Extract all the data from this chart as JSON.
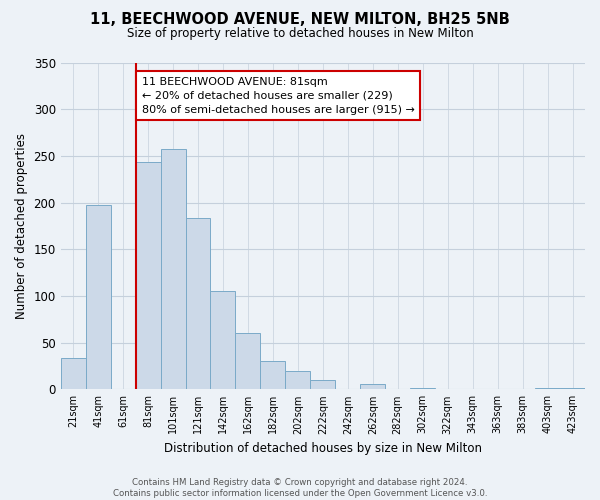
{
  "title": "11, BEECHWOOD AVENUE, NEW MILTON, BH25 5NB",
  "subtitle": "Size of property relative to detached houses in New Milton",
  "xlabel": "Distribution of detached houses by size in New Milton",
  "ylabel": "Number of detached properties",
  "bar_labels": [
    "21sqm",
    "41sqm",
    "61sqm",
    "81sqm",
    "101sqm",
    "121sqm",
    "142sqm",
    "162sqm",
    "182sqm",
    "202sqm",
    "222sqm",
    "242sqm",
    "262sqm",
    "282sqm",
    "302sqm",
    "322sqm",
    "343sqm",
    "363sqm",
    "383sqm",
    "403sqm",
    "423sqm"
  ],
  "bar_values": [
    33,
    197,
    0,
    243,
    257,
    183,
    105,
    60,
    30,
    20,
    10,
    0,
    6,
    0,
    1,
    0,
    0,
    0,
    0,
    1,
    1
  ],
  "bar_color": "#ccd9e8",
  "bar_edge_color": "#7aaac8",
  "vline_x_idx": 3,
  "vline_color": "#cc0000",
  "annotation_line1": "11 BEECHWOOD AVENUE: 81sqm",
  "annotation_line2": "← 20% of detached houses are smaller (229)",
  "annotation_line3": "80% of semi-detached houses are larger (915) →",
  "annotation_box_edgecolor": "#cc0000",
  "annotation_box_facecolor": "white",
  "ylim": [
    0,
    350
  ],
  "yticks": [
    0,
    50,
    100,
    150,
    200,
    250,
    300,
    350
  ],
  "footer_text": "Contains HM Land Registry data © Crown copyright and database right 2024.\nContains public sector information licensed under the Open Government Licence v3.0.",
  "bg_color": "#edf2f7",
  "plot_bg_color": "#edf2f7",
  "grid_color": "#c5d0dc"
}
